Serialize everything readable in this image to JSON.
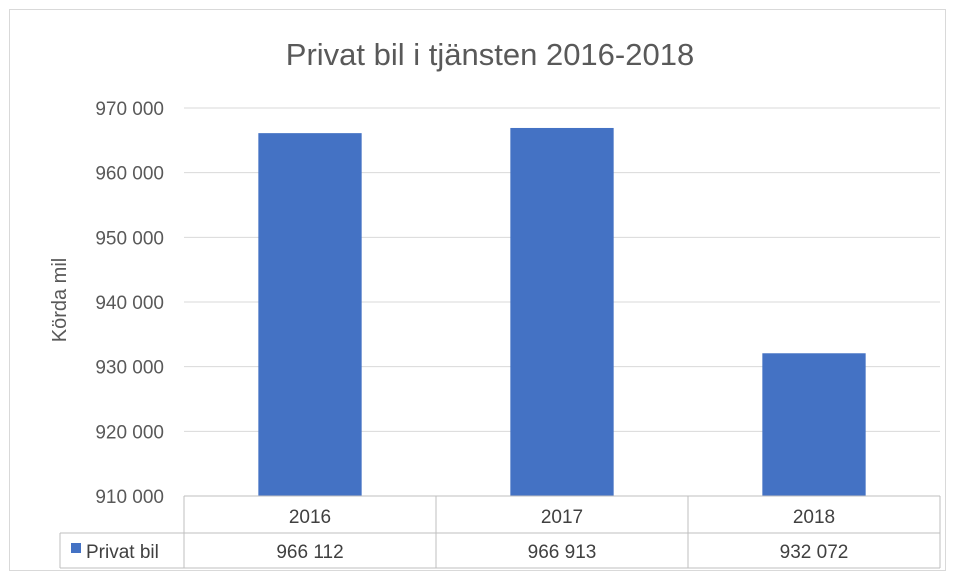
{
  "chart_data": {
    "type": "bar",
    "title": "Privat bil i tjänsten 2016-2018",
    "ylabel": "Körda mil",
    "xlabel": "",
    "categories": [
      "2016",
      "2017",
      "2018"
    ],
    "series": [
      {
        "name": "Privat bil",
        "values": [
          966112,
          966913,
          932072
        ],
        "value_labels": [
          "966 112",
          "966 913",
          "932 072"
        ],
        "color": "#4472C4"
      }
    ],
    "ylim": [
      910000,
      970000
    ],
    "yticks": [
      910000,
      920000,
      930000,
      940000,
      950000,
      960000,
      970000
    ],
    "ytick_labels": [
      "910 000",
      "920 000",
      "930 000",
      "940 000",
      "950 000",
      "960 000",
      "970 000"
    ],
    "grid": true,
    "legend": "data-table",
    "data_table": true
  }
}
